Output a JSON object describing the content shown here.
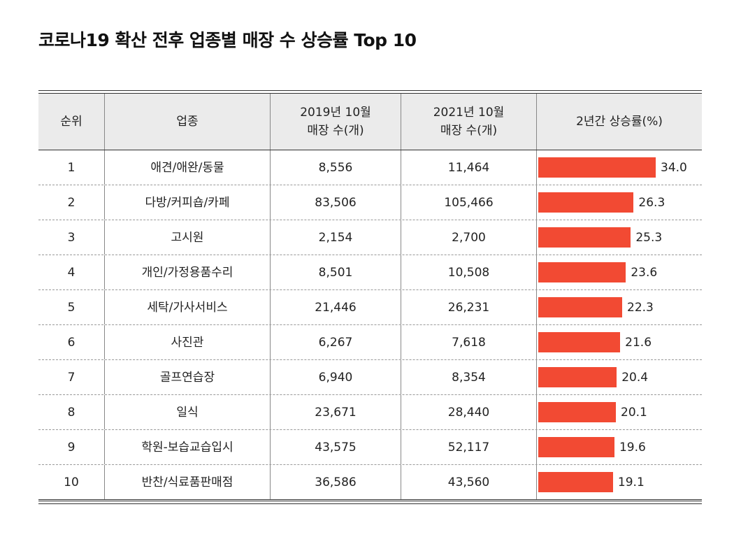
{
  "title": "코로나19 확산 전후 업종별 매장 수 상승률 Top 10",
  "headers": {
    "rank": "순위",
    "industry": "업종",
    "y2019_line1": "2019년 10월",
    "y2019_line2": "매장 수(개)",
    "y2021_line1": "2021년 10월",
    "y2021_line2": "매장 수(개)",
    "rate": "2년간 상승률(%)"
  },
  "colors": {
    "bar": "#f24a33",
    "header_bg": "#ebebeb"
  },
  "chart_data": {
    "type": "table",
    "title": "코로나19 확산 전후 업종별 매장 수 상승률 Top 10",
    "columns": [
      "순위",
      "업종",
      "2019년 10월 매장 수(개)",
      "2021년 10월 매장 수(개)",
      "2년간 상승률(%)"
    ],
    "rows": [
      {
        "rank": "1",
        "industry": "애견/애완/동물",
        "y2019": "8,556",
        "y2021": "11,464",
        "rate": 34.0,
        "rate_label": "34.0"
      },
      {
        "rank": "2",
        "industry": "다방/커피숍/카페",
        "y2019": "83,506",
        "y2021": "105,466",
        "rate": 26.3,
        "rate_label": "26.3"
      },
      {
        "rank": "3",
        "industry": "고시원",
        "y2019": "2,154",
        "y2021": "2,700",
        "rate": 25.3,
        "rate_label": "25.3"
      },
      {
        "rank": "4",
        "industry": "개인/가정용품수리",
        "y2019": "8,501",
        "y2021": "10,508",
        "rate": 23.6,
        "rate_label": "23.6"
      },
      {
        "rank": "5",
        "industry": "세탁/가사서비스",
        "y2019": "21,446",
        "y2021": "26,231",
        "rate": 22.3,
        "rate_label": "22.3"
      },
      {
        "rank": "6",
        "industry": "사진관",
        "y2019": "6,267",
        "y2021": "7,618",
        "rate": 21.6,
        "rate_label": "21.6"
      },
      {
        "rank": "7",
        "industry": "골프연습장",
        "y2019": "6,940",
        "y2021": "8,354",
        "rate": 20.4,
        "rate_label": "20.4"
      },
      {
        "rank": "8",
        "industry": "일식",
        "y2019": "23,671",
        "y2021": "28,440",
        "rate": 20.1,
        "rate_label": "20.1"
      },
      {
        "rank": "9",
        "industry": "학원-보습교습입시",
        "y2019": "43,575",
        "y2021": "52,117",
        "rate": 19.6,
        "rate_label": "19.6"
      },
      {
        "rank": "10",
        "industry": "반찬/식료품판매점",
        "y2019": "36,586",
        "y2021": "43,560",
        "rate": 19.1,
        "rate_label": "19.1"
      }
    ]
  }
}
